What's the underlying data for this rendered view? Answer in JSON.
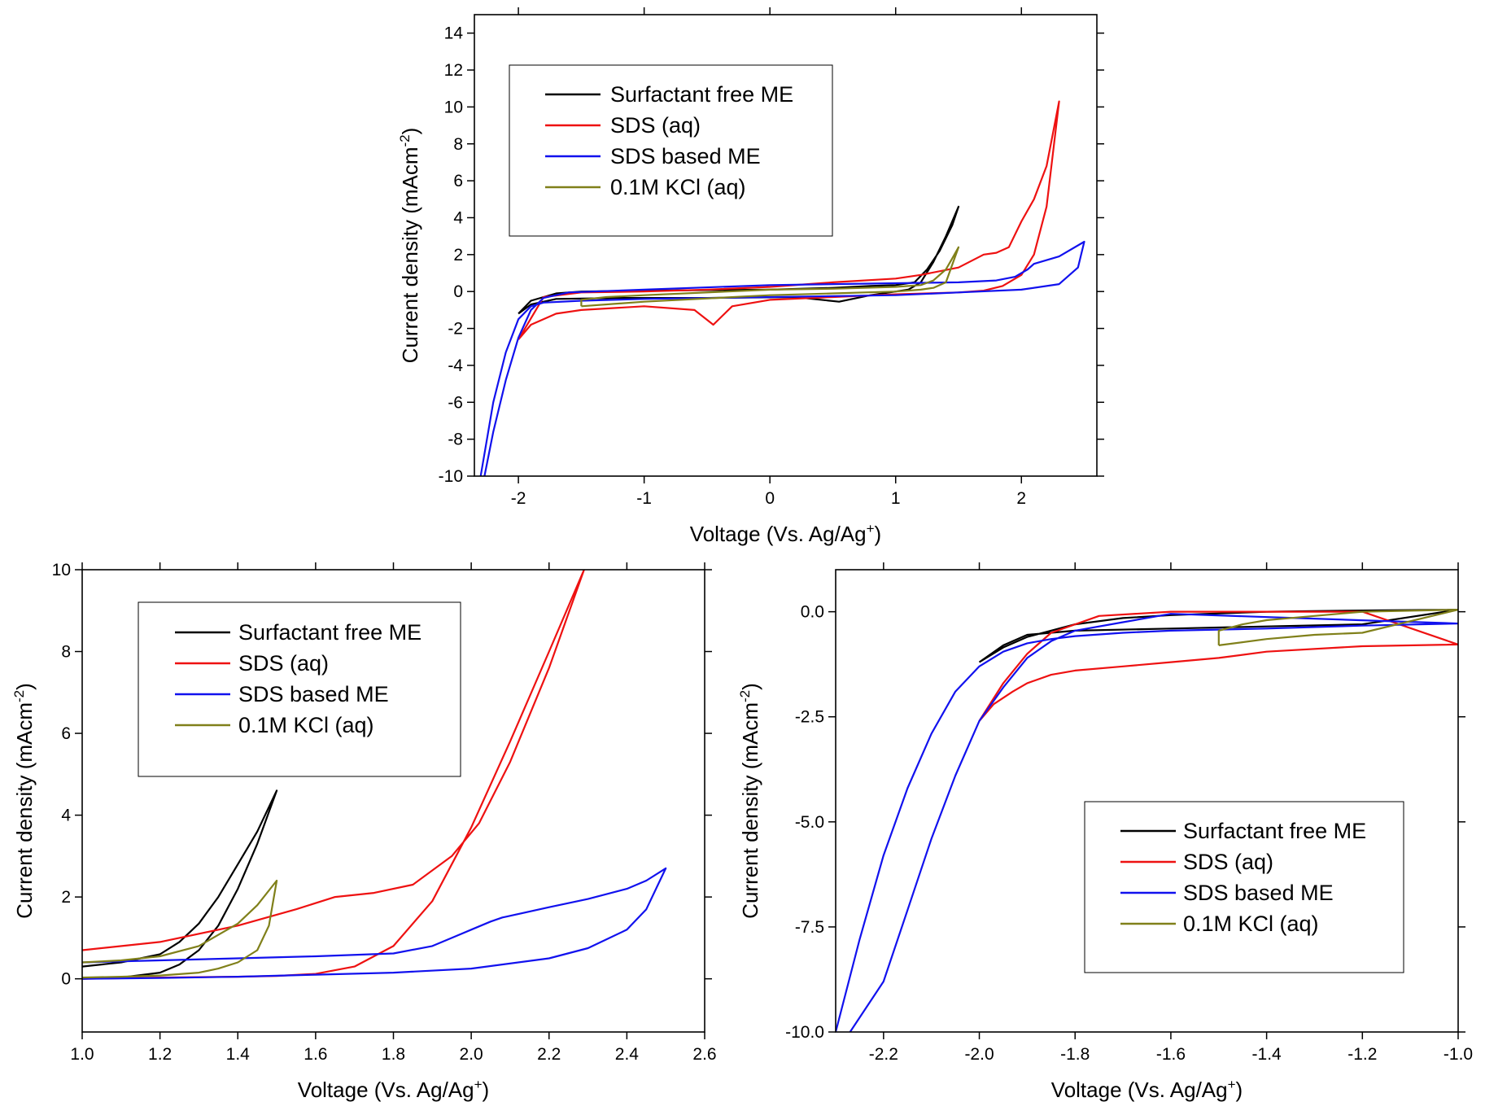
{
  "figure": {
    "colors": {
      "surfactant_free_me": "#000000",
      "sds_aq": "#ee1111",
      "sds_based_me": "#1111ee",
      "kcl_aq": "#80801a"
    }
  },
  "chart_data": [
    {
      "id": "top",
      "type": "line",
      "title": "",
      "xlabel": "Voltage (Vs. Ag/Ag+)",
      "ylabel": "Current density (mAcm-2)",
      "xlim": [
        -2.35,
        2.6
      ],
      "ylim": [
        -10,
        15
      ],
      "xticks": [
        -2,
        -1,
        0,
        1,
        2
      ],
      "xticklabels": [
        "-2",
        "-1",
        "0",
        "1",
        "2"
      ],
      "yticks": [
        -10,
        -8,
        -6,
        -4,
        -2,
        0,
        2,
        4,
        6,
        8,
        10,
        12,
        14
      ],
      "yticklabels": [
        "-10",
        "-8",
        "-6",
        "-4",
        "-2",
        "0",
        "2",
        "4",
        "6",
        "8",
        "10",
        "12",
        "14"
      ],
      "legend": {
        "position": "top-left",
        "entries": [
          "Surfactant free ME",
          "SDS (aq)",
          "SDS based ME",
          "0.1M KCl (aq)"
        ]
      },
      "series": [
        {
          "name": "Surfactant free ME",
          "color_key": "surfactant_free_me",
          "x": [
            -2.0,
            -1.9,
            -1.7,
            -1.5,
            -1.0,
            0.0,
            0.5,
            0.8,
            1.0,
            1.15,
            1.25,
            1.35,
            1.45,
            1.5,
            1.4,
            1.3,
            1.2,
            1.1,
            1.0,
            0.8,
            0.55,
            0.2,
            -0.5,
            -1.2,
            -1.7,
            -1.9,
            -2.0
          ],
          "y": [
            -1.2,
            -0.5,
            -0.1,
            0.0,
            0.05,
            0.1,
            0.2,
            0.3,
            0.35,
            0.5,
            1.2,
            2.2,
            3.6,
            4.6,
            3.0,
            1.6,
            0.5,
            0.1,
            0.0,
            -0.2,
            -0.55,
            -0.3,
            -0.35,
            -0.35,
            -0.4,
            -0.7,
            -1.2
          ]
        },
        {
          "name": "SDS (aq)",
          "color_key": "sds_aq",
          "x": [
            -2.0,
            -1.9,
            -1.7,
            -1.5,
            -1.0,
            -0.6,
            -0.45,
            -0.3,
            0.0,
            0.5,
            1.0,
            1.5,
            1.7,
            1.85,
            2.0,
            2.1,
            2.2,
            2.3,
            2.2,
            2.1,
            2.0,
            1.9,
            1.8,
            1.7,
            1.5,
            1.2,
            1.0,
            0.5,
            0.0,
            -0.5,
            -1.0,
            -1.5,
            -1.8,
            -2.0
          ],
          "y": [
            -2.6,
            -1.8,
            -1.2,
            -1.0,
            -0.8,
            -1.0,
            -1.8,
            -0.8,
            -0.45,
            -0.3,
            -0.15,
            -0.05,
            0.05,
            0.3,
            0.9,
            2.0,
            4.6,
            10.3,
            6.8,
            5.0,
            3.8,
            2.4,
            2.1,
            2.0,
            1.3,
            0.9,
            0.7,
            0.5,
            0.25,
            0.1,
            0.0,
            -0.05,
            -0.3,
            -2.6
          ]
        },
        {
          "name": "SDS based ME",
          "color_key": "sds_based_me",
          "x": [
            -2.3,
            -2.2,
            -2.1,
            -2.0,
            -1.9,
            -1.8,
            -1.5,
            -1.0,
            0.0,
            1.0,
            1.5,
            2.0,
            2.3,
            2.45,
            2.5,
            2.3,
            2.1,
            2.05,
            1.95,
            1.8,
            1.5,
            1.0,
            0.0,
            -1.0,
            -1.6,
            -1.8,
            -1.9,
            -2.0,
            -2.1,
            -2.2,
            -2.27
          ],
          "y": [
            -10.0,
            -6.0,
            -3.3,
            -1.5,
            -0.8,
            -0.6,
            -0.5,
            -0.4,
            -0.3,
            -0.2,
            -0.05,
            0.1,
            0.4,
            1.3,
            2.7,
            1.9,
            1.5,
            1.2,
            0.8,
            0.6,
            0.5,
            0.45,
            0.35,
            0.1,
            -0.05,
            -0.35,
            -1.0,
            -2.5,
            -4.8,
            -7.6,
            -10.0
          ]
        },
        {
          "name": "0.1M KCl (aq)",
          "color_key": "kcl_aq",
          "x": [
            -1.5,
            -1.5,
            -1.3,
            -1.0,
            0.0,
            0.5,
            1.0,
            1.2,
            1.3,
            1.4,
            1.45,
            1.5,
            1.4,
            1.3,
            1.2,
            1.0,
            0.5,
            0.0,
            -1.0,
            -1.5
          ],
          "y": [
            -0.8,
            -0.45,
            -0.3,
            -0.2,
            0.1,
            0.15,
            0.25,
            0.35,
            0.6,
            1.2,
            1.8,
            2.4,
            0.5,
            0.2,
            0.1,
            0.0,
            -0.1,
            -0.2,
            -0.55,
            -0.8
          ]
        }
      ]
    },
    {
      "id": "bottom-left",
      "type": "line",
      "title": "",
      "xlabel": "Voltage (Vs. Ag/Ag+)",
      "ylabel": "Current density (mAcm-2)",
      "xlim": [
        1.0,
        2.6
      ],
      "ylim": [
        -1.3,
        10
      ],
      "xticks": [
        1.0,
        1.2,
        1.4,
        1.6,
        1.8,
        2.0,
        2.2,
        2.4,
        2.6
      ],
      "xticklabels": [
        "1.0",
        "1.2",
        "1.4",
        "1.6",
        "1.8",
        "2.0",
        "2.2",
        "2.4",
        "2.6"
      ],
      "yticks": [
        0,
        2,
        4,
        6,
        8,
        10
      ],
      "yticklabels": [
        "0",
        "2",
        "4",
        "6",
        "8",
        "10"
      ],
      "legend": {
        "position": "top-left",
        "entries": [
          "Surfactant free ME",
          "SDS (aq)",
          "SDS based ME",
          "0.1M KCl (aq)"
        ]
      },
      "series": [
        {
          "name": "Surfactant free ME",
          "color_key": "surfactant_free_me",
          "x": [
            1.0,
            1.1,
            1.2,
            1.25,
            1.3,
            1.35,
            1.4,
            1.45,
            1.5,
            1.45,
            1.4,
            1.35,
            1.3,
            1.25,
            1.2,
            1.1,
            1.0
          ],
          "y": [
            0.3,
            0.4,
            0.6,
            0.9,
            1.35,
            2.0,
            2.8,
            3.6,
            4.6,
            3.3,
            2.2,
            1.3,
            0.7,
            0.35,
            0.15,
            0.03,
            0.0
          ]
        },
        {
          "name": "SDS (aq)",
          "color_key": "sds_aq",
          "x": [
            1.0,
            1.2,
            1.4,
            1.55,
            1.65,
            1.75,
            1.85,
            1.95,
            2.02,
            2.1,
            2.2,
            2.29,
            2.2,
            2.1,
            2.0,
            1.9,
            1.8,
            1.7,
            1.6,
            1.5,
            1.4,
            1.2,
            1.0
          ],
          "y": [
            0.7,
            0.9,
            1.3,
            1.7,
            2.0,
            2.1,
            2.3,
            3.0,
            3.8,
            5.3,
            7.6,
            10.0,
            8.0,
            5.8,
            3.7,
            1.9,
            0.8,
            0.3,
            0.12,
            0.07,
            0.05,
            0.03,
            0.0
          ]
        },
        {
          "name": "SDS based ME",
          "color_key": "sds_based_me",
          "x": [
            1.0,
            1.2,
            1.4,
            1.6,
            1.8,
            1.9,
            1.95,
            2.0,
            2.05,
            2.08,
            2.09,
            2.2,
            2.3,
            2.4,
            2.45,
            2.5,
            2.45,
            2.4,
            2.3,
            2.2,
            2.0,
            1.8,
            1.6,
            1.4,
            1.2,
            1.0
          ],
          "y": [
            0.4,
            0.45,
            0.5,
            0.55,
            0.62,
            0.8,
            1.0,
            1.2,
            1.4,
            1.5,
            1.52,
            1.75,
            1.95,
            2.2,
            2.4,
            2.7,
            1.7,
            1.2,
            0.75,
            0.5,
            0.25,
            0.15,
            0.1,
            0.05,
            0.02,
            0.0
          ]
        },
        {
          "name": "0.1M KCl (aq)",
          "color_key": "kcl_aq",
          "x": [
            1.0,
            1.1,
            1.2,
            1.3,
            1.4,
            1.45,
            1.5,
            1.48,
            1.45,
            1.4,
            1.35,
            1.3,
            1.2,
            1.1,
            1.0
          ],
          "y": [
            0.4,
            0.45,
            0.55,
            0.8,
            1.35,
            1.8,
            2.4,
            1.3,
            0.7,
            0.4,
            0.25,
            0.15,
            0.08,
            0.05,
            0.03
          ]
        }
      ]
    },
    {
      "id": "bottom-right",
      "type": "line",
      "title": "",
      "xlabel": "Voltage (Vs. Ag/Ag+)",
      "ylabel": "Current density (mAcm-2)",
      "xlim": [
        -2.3,
        -1.0
      ],
      "ylim": [
        -10,
        1
      ],
      "xticks": [
        -2.2,
        -2.0,
        -1.8,
        -1.6,
        -1.4,
        -1.2,
        -1.0
      ],
      "xticklabels": [
        "-2.2",
        "-2.0",
        "-1.8",
        "-1.6",
        "-1.4",
        "-1.2",
        "-1.0"
      ],
      "yticks": [
        -10,
        -7.5,
        -5,
        -2.5,
        0
      ],
      "yticklabels": [
        "-10.0",
        "-7.5",
        "-5.0",
        "-2.5",
        "0.0"
      ],
      "legend": {
        "position": "bottom-right",
        "entries": [
          "Surfactant free ME",
          "SDS (aq)",
          "SDS based ME",
          "0.1M KCl (aq)"
        ]
      },
      "series": [
        {
          "name": "Surfactant free ME",
          "color_key": "surfactant_free_me",
          "x": [
            -2.0,
            -1.95,
            -1.9,
            -1.8,
            -1.7,
            -1.6,
            -1.4,
            -1.2,
            -1.0,
            -1.2,
            -1.4,
            -1.6,
            -1.8,
            -1.9,
            -1.95,
            -2.0
          ],
          "y": [
            -1.2,
            -0.85,
            -0.6,
            -0.3,
            -0.15,
            -0.08,
            0.0,
            0.03,
            0.05,
            -0.3,
            -0.35,
            -0.4,
            -0.45,
            -0.55,
            -0.8,
            -1.2
          ]
        },
        {
          "name": "SDS (aq)",
          "color_key": "sds_aq",
          "x": [
            -2.0,
            -1.97,
            -1.93,
            -1.9,
            -1.85,
            -1.8,
            -1.7,
            -1.6,
            -1.5,
            -1.4,
            -1.2,
            -1.0,
            -1.2,
            -1.4,
            -1.6,
            -1.75,
            -1.85,
            -1.9,
            -1.95,
            -2.0
          ],
          "y": [
            -2.6,
            -2.2,
            -1.9,
            -1.7,
            -1.5,
            -1.4,
            -1.3,
            -1.2,
            -1.1,
            -0.95,
            -0.82,
            -0.78,
            0.0,
            0.0,
            0.0,
            -0.1,
            -0.5,
            -1.0,
            -1.7,
            -2.6
          ]
        },
        {
          "name": "SDS based ME",
          "color_key": "sds_based_me",
          "x": [
            -2.3,
            -2.25,
            -2.2,
            -2.15,
            -2.1,
            -2.05,
            -2.0,
            -1.95,
            -1.9,
            -1.85,
            -1.8,
            -1.7,
            -1.6,
            -1.4,
            -1.2,
            -1.0,
            -1.6,
            -1.7,
            -1.8,
            -1.85,
            -1.9,
            -1.95,
            -2.0,
            -2.05,
            -2.1,
            -2.15,
            -2.2,
            -2.27
          ],
          "y": [
            -10.0,
            -7.8,
            -5.8,
            -4.2,
            -2.9,
            -1.9,
            -1.3,
            -0.95,
            -0.75,
            -0.65,
            -0.58,
            -0.5,
            -0.45,
            -0.4,
            -0.33,
            -0.28,
            -0.05,
            -0.25,
            -0.45,
            -0.7,
            -1.1,
            -1.8,
            -2.6,
            -3.9,
            -5.4,
            -7.1,
            -8.8,
            -10.0
          ]
        },
        {
          "name": "0.1M KCl (aq)",
          "color_key": "kcl_aq",
          "x": [
            -1.5,
            -1.5,
            -1.45,
            -1.4,
            -1.3,
            -1.2,
            -1.0,
            -1.2,
            -1.3,
            -1.4,
            -1.5
          ],
          "y": [
            -0.8,
            -0.45,
            -0.3,
            -0.2,
            -0.1,
            0.0,
            0.05,
            -0.5,
            -0.55,
            -0.65,
            -0.8
          ]
        }
      ]
    }
  ]
}
